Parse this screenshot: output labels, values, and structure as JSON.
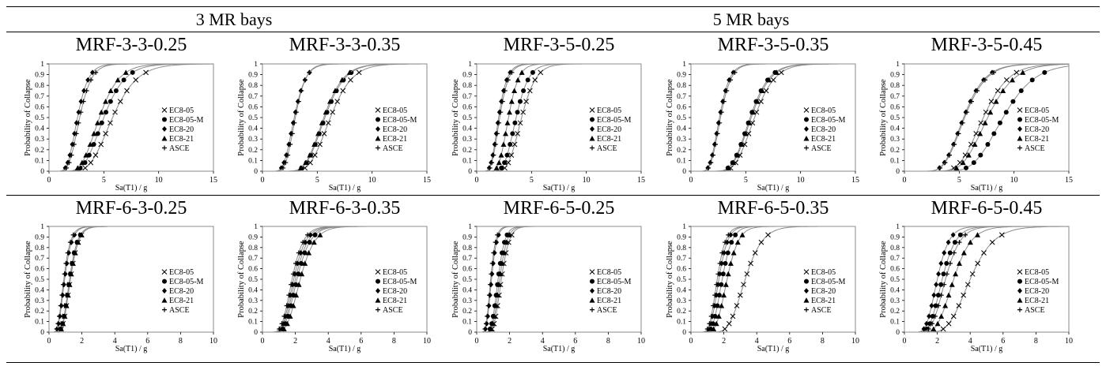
{
  "figure": {
    "group_titles": [
      "3 MR bays",
      "5 MR bays"
    ]
  },
  "chart_data": [
    {
      "type": "line",
      "title": "MRF-3-3-0.25",
      "xlabel": "Sa(T1) / g",
      "ylabel": "Probability of Collapse",
      "xlim": [
        0,
        15
      ],
      "ylim": [
        0,
        1
      ],
      "xticks": [
        0,
        5,
        10,
        15
      ],
      "yticks": [
        0,
        0.1,
        0.2,
        0.3,
        0.4,
        0.5,
        0.6,
        0.7,
        0.8,
        0.9,
        1
      ],
      "legend_placement": "right",
      "series": [
        {
          "name": "EC8-05",
          "marker": "x",
          "median": 5.8,
          "beta": 0.3
        },
        {
          "name": "EC8-05-M",
          "marker": "circle",
          "median": 5.0,
          "beta": 0.3
        },
        {
          "name": "EC8-20",
          "marker": "diamond",
          "median": 2.6,
          "beta": 0.3
        },
        {
          "name": "EC8-21",
          "marker": "triangle",
          "median": 4.6,
          "beta": 0.3
        },
        {
          "name": "ASCE",
          "marker": "plus",
          "median": 2.8,
          "beta": 0.3
        }
      ]
    },
    {
      "type": "line",
      "title": "MRF-3-3-0.35",
      "xlabel": "Sa(T1) / g",
      "ylabel": "Probability of Collapse",
      "xlim": [
        0,
        15
      ],
      "ylim": [
        0,
        1
      ],
      "xticks": [
        0,
        5,
        10,
        15
      ],
      "yticks": [
        0,
        0.1,
        0.2,
        0.3,
        0.4,
        0.5,
        0.6,
        0.7,
        0.8,
        0.9,
        1
      ],
      "legend_placement": "right",
      "series": [
        {
          "name": "EC8-05",
          "marker": "x",
          "median": 6.2,
          "beta": 0.25
        },
        {
          "name": "EC8-05-M",
          "marker": "circle",
          "median": 5.7,
          "beta": 0.25
        },
        {
          "name": "EC8-20",
          "marker": "diamond",
          "median": 2.9,
          "beta": 0.28
        },
        {
          "name": "EC8-21",
          "marker": "triangle",
          "median": 5.6,
          "beta": 0.25
        },
        {
          "name": "ASCE",
          "marker": "plus",
          "median": 3.0,
          "beta": 0.25
        }
      ]
    },
    {
      "type": "line",
      "title": "MRF-3-5-0.25",
      "xlabel": "Sa(T1) / g",
      "ylabel": "Probability of Collapse",
      "xlim": [
        0,
        15
      ],
      "ylim": [
        0,
        1
      ],
      "xticks": [
        0,
        5,
        10,
        15
      ],
      "yticks": [
        0,
        0.1,
        0.2,
        0.3,
        0.4,
        0.5,
        0.6,
        0.7,
        0.8,
        0.9,
        1
      ],
      "legend_placement": "right",
      "series": [
        {
          "name": "EC8-05",
          "marker": "x",
          "median": 4.1,
          "beta": 0.25
        },
        {
          "name": "EC8-05-M",
          "marker": "circle",
          "median": 3.6,
          "beta": 0.25
        },
        {
          "name": "EC8-20",
          "marker": "diamond",
          "median": 2.0,
          "beta": 0.3
        },
        {
          "name": "EC8-21",
          "marker": "triangle",
          "median": 2.9,
          "beta": 0.25
        },
        {
          "name": "ASCE",
          "marker": "plus",
          "median": 2.1,
          "beta": 0.3
        }
      ]
    },
    {
      "type": "line",
      "title": "MRF-3-5-0.35",
      "xlabel": "Sa(T1) / g",
      "ylabel": "Probability of Collapse",
      "xlim": [
        0,
        15
      ],
      "ylim": [
        0,
        1
      ],
      "xticks": [
        0,
        5,
        10,
        15
      ],
      "yticks": [
        0,
        0.1,
        0.2,
        0.3,
        0.4,
        0.5,
        0.6,
        0.7,
        0.8,
        0.9,
        1
      ],
      "legend_placement": "right",
      "series": [
        {
          "name": "EC8-05",
          "marker": "x",
          "median": 5.8,
          "beta": 0.25
        },
        {
          "name": "EC8-05-M",
          "marker": "circle",
          "median": 5.4,
          "beta": 0.25
        },
        {
          "name": "EC8-20",
          "marker": "diamond",
          "median": 2.6,
          "beta": 0.28
        },
        {
          "name": "EC8-21",
          "marker": "triangle",
          "median": 5.5,
          "beta": 0.25
        },
        {
          "name": "ASCE",
          "marker": "plus",
          "median": 2.7,
          "beta": 0.28
        }
      ]
    },
    {
      "type": "line",
      "title": "MRF-3-5-0.45",
      "xlabel": "Sa(T1) / g",
      "ylabel": "Probability of Collapse",
      "xlim": [
        0,
        15
      ],
      "ylim": [
        0,
        1
      ],
      "xticks": [
        0,
        5,
        10,
        15
      ],
      "yticks": [
        0,
        0.1,
        0.2,
        0.3,
        0.4,
        0.5,
        0.6,
        0.7,
        0.8,
        0.9,
        1
      ],
      "legend_placement": "right",
      "series": [
        {
          "name": "EC8-05",
          "marker": "x",
          "median": 7.2,
          "beta": 0.25
        },
        {
          "name": "EC8-05-M",
          "marker": "circle",
          "median": 9.0,
          "beta": 0.25
        },
        {
          "name": "EC8-20",
          "marker": "diamond",
          "median": 5.4,
          "beta": 0.28
        },
        {
          "name": "EC8-21",
          "marker": "triangle",
          "median": 7.6,
          "beta": 0.25
        },
        {
          "name": "ASCE",
          "marker": "plus",
          "median": 5.5,
          "beta": 0.28
        }
      ]
    },
    {
      "type": "line",
      "title": "MRF-6-3-0.25",
      "xlabel": "Sa(T1) / g",
      "ylabel": "Probability of Collapse",
      "xlim": [
        0,
        10
      ],
      "ylim": [
        0,
        1
      ],
      "xticks": [
        0,
        2,
        4,
        6,
        8,
        10
      ],
      "yticks": [
        0,
        0.1,
        0.2,
        0.3,
        0.4,
        0.5,
        0.6,
        0.7,
        0.8,
        0.9,
        1
      ],
      "legend_placement": "right",
      "series": [
        {
          "name": "EC8-05",
          "marker": "x",
          "median": 1.3,
          "beta": 0.3
        },
        {
          "name": "EC8-05-M",
          "marker": "circle",
          "median": 1.25,
          "beta": 0.3
        },
        {
          "name": "EC8-20",
          "marker": "diamond",
          "median": 0.95,
          "beta": 0.35
        },
        {
          "name": "EC8-21",
          "marker": "triangle",
          "median": 1.3,
          "beta": 0.3
        },
        {
          "name": "ASCE",
          "marker": "plus",
          "median": 0.9,
          "beta": 0.35
        }
      ]
    },
    {
      "type": "line",
      "title": "MRF-6-3-0.35",
      "xlabel": "Sa(T1) / g",
      "ylabel": "Probability of Collapse",
      "xlim": [
        0,
        10
      ],
      "ylim": [
        0,
        1
      ],
      "xticks": [
        0,
        2,
        4,
        6,
        8,
        10
      ],
      "yticks": [
        0,
        0.1,
        0.2,
        0.3,
        0.4,
        0.5,
        0.6,
        0.7,
        0.8,
        0.9,
        1
      ],
      "legend_placement": "right",
      "series": [
        {
          "name": "EC8-05",
          "marker": "x",
          "median": 2.0,
          "beta": 0.3
        },
        {
          "name": "EC8-05-M",
          "marker": "circle",
          "median": 2.1,
          "beta": 0.3
        },
        {
          "name": "EC8-20",
          "marker": "diamond",
          "median": 1.9,
          "beta": 0.3
        },
        {
          "name": "EC8-21",
          "marker": "triangle",
          "median": 2.3,
          "beta": 0.3
        },
        {
          "name": "ASCE",
          "marker": "plus",
          "median": 1.8,
          "beta": 0.3
        }
      ]
    },
    {
      "type": "line",
      "title": "MRF-6-5-0.25",
      "xlabel": "Sa(T1) / g",
      "ylabel": "Probability of Collapse",
      "xlim": [
        0,
        10
      ],
      "ylim": [
        0,
        1
      ],
      "xticks": [
        0,
        2,
        4,
        6,
        8,
        10
      ],
      "yticks": [
        0,
        0.1,
        0.2,
        0.3,
        0.4,
        0.5,
        0.6,
        0.7,
        0.8,
        0.9,
        1
      ],
      "legend_placement": "right",
      "series": [
        {
          "name": "EC8-05",
          "marker": "x",
          "median": 1.5,
          "beta": 0.25
        },
        {
          "name": "EC8-05-M",
          "marker": "circle",
          "median": 1.3,
          "beta": 0.25
        },
        {
          "name": "EC8-20",
          "marker": "diamond",
          "median": 0.9,
          "beta": 0.28
        },
        {
          "name": "EC8-21",
          "marker": "triangle",
          "median": 1.4,
          "beta": 0.25
        },
        {
          "name": "ASCE",
          "marker": "plus",
          "median": 0.85,
          "beta": 0.28
        }
      ]
    },
    {
      "type": "line",
      "title": "MRF-6-5-0.35",
      "xlabel": "Sa(T1) / g",
      "ylabel": "Probability of Collapse",
      "xlim": [
        0,
        10
      ],
      "ylim": [
        0,
        1
      ],
      "xticks": [
        0,
        2,
        4,
        6,
        8,
        10
      ],
      "yticks": [
        0,
        0.1,
        0.2,
        0.3,
        0.4,
        0.5,
        0.6,
        0.7,
        0.8,
        0.9,
        1
      ],
      "legend_placement": "right",
      "series": [
        {
          "name": "EC8-05",
          "marker": "x",
          "median": 3.3,
          "beta": 0.25
        },
        {
          "name": "EC8-05-M",
          "marker": "circle",
          "median": 1.9,
          "beta": 0.25
        },
        {
          "name": "EC8-20",
          "marker": "diamond",
          "median": 1.7,
          "beta": 0.25
        },
        {
          "name": "EC8-21",
          "marker": "triangle",
          "median": 2.2,
          "beta": 0.25
        },
        {
          "name": "ASCE",
          "marker": "plus",
          "median": 1.6,
          "beta": 0.25
        }
      ]
    },
    {
      "type": "line",
      "title": "MRF-6-5-0.45",
      "xlabel": "Sa(T1) / g",
      "ylabel": "Probability of Collapse",
      "xlim": [
        0,
        10
      ],
      "ylim": [
        0,
        1
      ],
      "xticks": [
        0,
        2,
        4,
        6,
        8,
        10
      ],
      "yticks": [
        0,
        0.1,
        0.2,
        0.3,
        0.4,
        0.5,
        0.6,
        0.7,
        0.8,
        0.9,
        1
      ],
      "legend_placement": "right",
      "series": [
        {
          "name": "EC8-05",
          "marker": "x",
          "median": 4.0,
          "beta": 0.28
        },
        {
          "name": "EC8-05-M",
          "marker": "circle",
          "median": 2.3,
          "beta": 0.28
        },
        {
          "name": "EC8-20",
          "marker": "diamond",
          "median": 2.0,
          "beta": 0.28
        },
        {
          "name": "EC8-21",
          "marker": "triangle",
          "median": 3.0,
          "beta": 0.28
        },
        {
          "name": "ASCE",
          "marker": "plus",
          "median": 2.5,
          "beta": 0.28
        }
      ]
    }
  ]
}
